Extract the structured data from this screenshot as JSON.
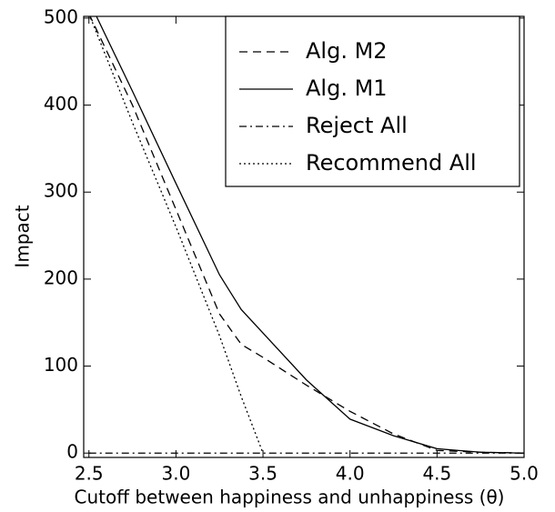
{
  "chart_data": {
    "type": "line",
    "xlabel": "Cutoff between happiness and unhappiness (θ)",
    "ylabel": "Impact",
    "x": [
      2.5,
      2.75,
      3.0,
      3.25,
      3.375,
      3.5,
      3.75,
      4.0,
      4.25,
      4.5,
      4.75,
      5.0
    ],
    "series": [
      {
        "name": "Alg. M2",
        "color": "#000000",
        "dash": "dashed",
        "values": [
          505,
          400,
          280,
          160,
          125,
          110,
          78,
          48,
          22,
          3,
          1,
          0
        ]
      },
      {
        "name": "Alg. M1",
        "color": "#000000",
        "dash": "solid",
        "values": [
          520,
          416,
          310,
          205,
          165,
          138,
          84,
          39,
          20,
          5,
          1,
          0
        ]
      },
      {
        "name": "Reject All",
        "color": "#000000",
        "dash": "dashdot",
        "values": [
          0,
          0,
          0,
          0,
          0,
          0,
          0,
          0,
          0,
          0,
          0,
          0
        ]
      },
      {
        "name": "Recommend All",
        "color": "#000000",
        "dash": "dotted",
        "values": [
          505,
          380,
          260,
          135,
          65,
          0,
          null,
          null,
          null,
          null,
          null,
          null
        ]
      }
    ],
    "xlim": [
      2.47,
      5.0
    ],
    "ylim": [
      -5,
      502
    ],
    "xticks": [
      2.5,
      {
        "value": 3,
        "label": "3.0"
      },
      3.5,
      {
        "value": 4,
        "label": "4.0"
      },
      4.5,
      {
        "value": 5,
        "label": "5.0"
      }
    ],
    "yticks": [
      0,
      100,
      200,
      300,
      400,
      500
    ],
    "legend": "upper right",
    "grid": false
  }
}
